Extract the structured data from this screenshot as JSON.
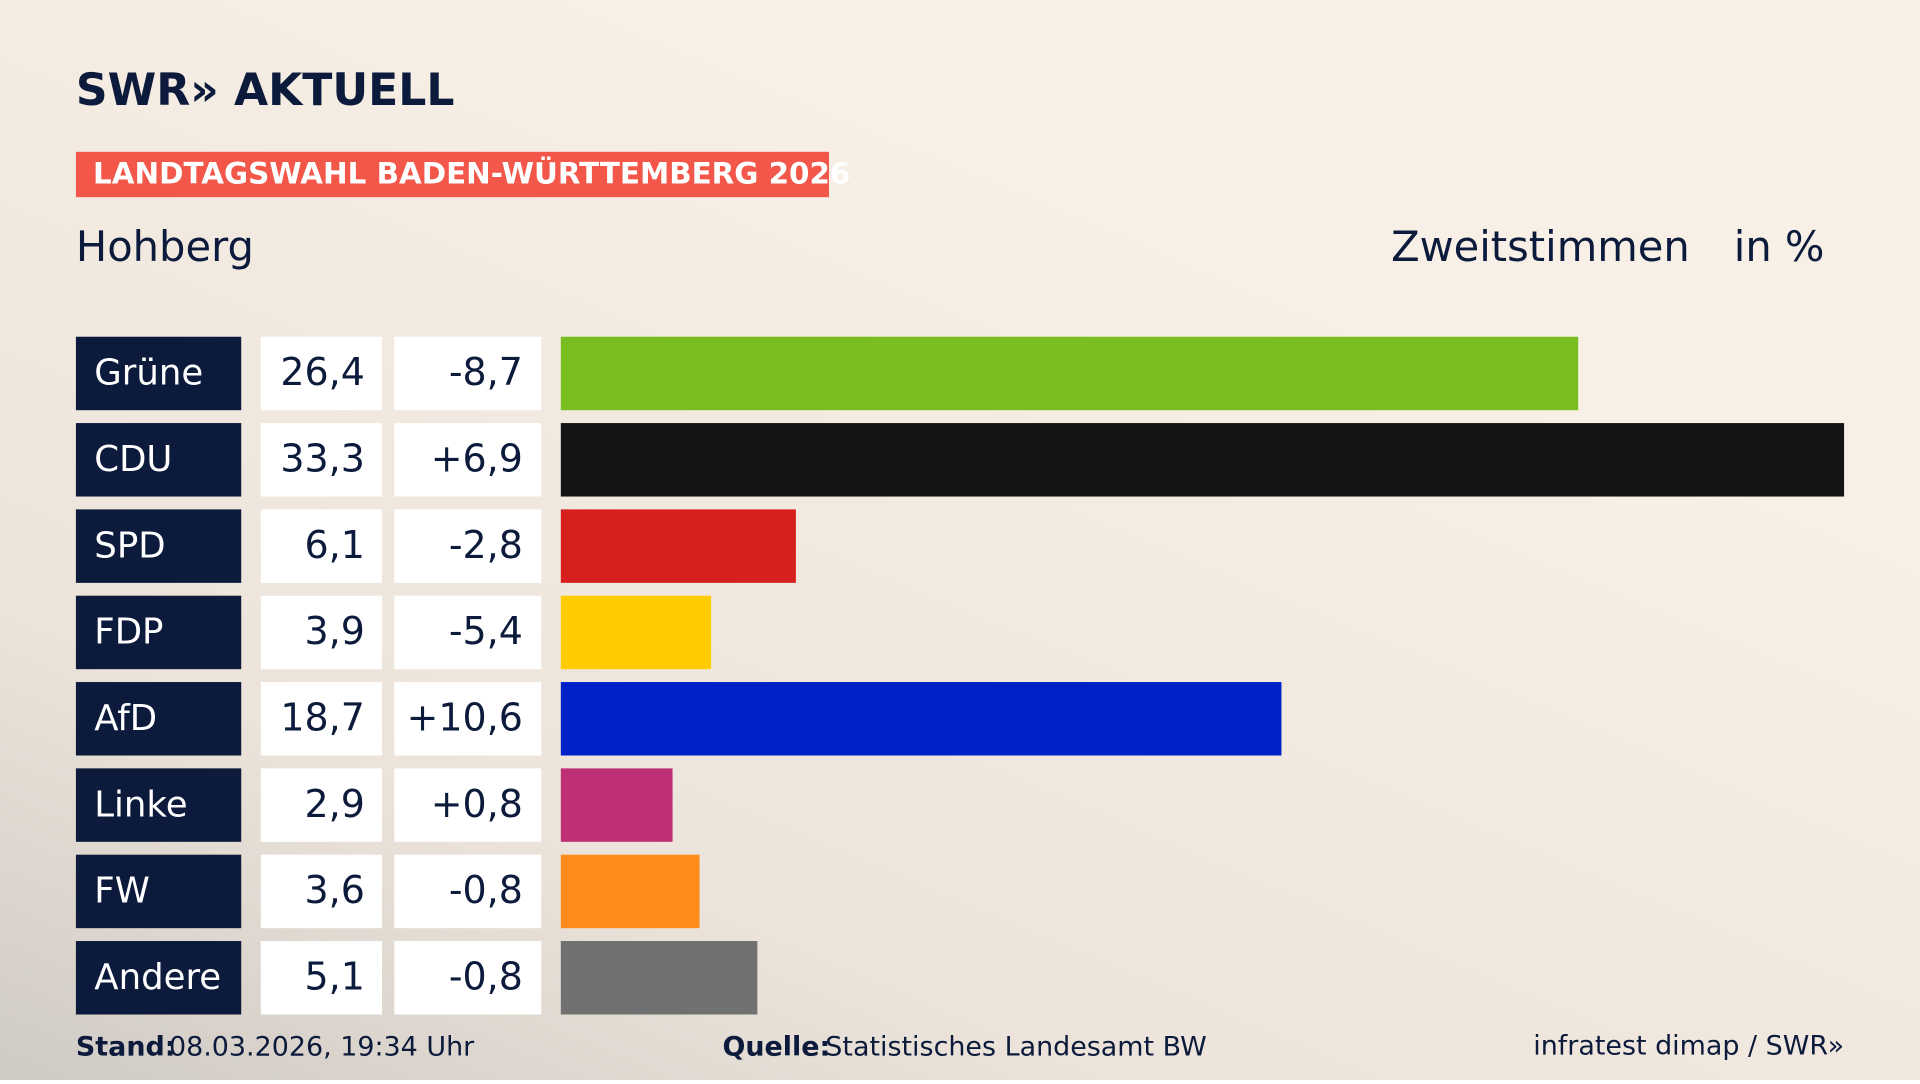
{
  "page": {
    "brand": "SWR» AKTUELL",
    "banner": "LANDTAGSWAHL BADEN-WÜRTTEMBERG 2026",
    "stand_label": "Stand:",
    "stand": "08.03.2026, 19:34 Uhr",
    "source_label": "Quelle:",
    "source": "Statistisches Landesamt BW",
    "credit": "infratest dimap / SWR»"
  },
  "chart_data": {
    "type": "hbar",
    "title": "Hohberg",
    "value_header": "Zweitstimmen",
    "unit_label": "in %",
    "categories": [
      "Grüne",
      "CDU",
      "SPD",
      "FDP",
      "AfD",
      "Linke",
      "FW",
      "Andere"
    ],
    "values": [
      26.4,
      33.3,
      6.1,
      3.9,
      18.7,
      2.9,
      3.6,
      5.1
    ],
    "value_labels": [
      "26,4",
      "33,3",
      "6,1",
      "3,9",
      "18,7",
      "2,9",
      "3,6",
      "5,1"
    ],
    "changes": [
      -8.7,
      6.9,
      -2.8,
      -5.4,
      10.6,
      0.8,
      -0.8,
      -0.8
    ],
    "change_labels": [
      "-8,7",
      "+6,9",
      "-2,8",
      "-5,4",
      "+10,6",
      "+0,8",
      "-0,8",
      "-0,8"
    ],
    "colors": [
      "#78be20",
      "#151515",
      "#d71f1d",
      "#ffcc00",
      "#0021c8",
      "#be3075",
      "#ff8c1a",
      "#707070"
    ]
  }
}
